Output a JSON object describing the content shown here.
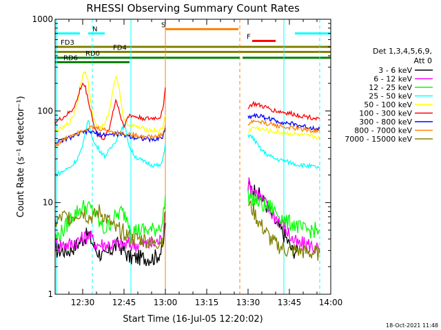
{
  "chart_data": {
    "type": "line",
    "title": "RHESSI Observing Summary Count Rates",
    "xlabel": "Start Time (16-Jul-05 12:20:02)",
    "ylabel": "Count Rate (s⁻¹ detector⁻¹)",
    "ylog": true,
    "ylim": [
      1,
      1000
    ],
    "xlim_minutes": [
      0,
      100
    ],
    "x_ticks": [
      {
        "label": "12:30",
        "minute": 10
      },
      {
        "label": "12:45",
        "minute": 25
      },
      {
        "label": "13:00",
        "minute": 40
      },
      {
        "label": "13:15",
        "minute": 55
      },
      {
        "label": "13:30",
        "minute": 70
      },
      {
        "label": "13:45",
        "minute": 85
      },
      {
        "label": "14:00",
        "minute": 100
      }
    ],
    "y_ticks": [
      {
        "label": "1",
        "value": 1
      },
      {
        "label": "10",
        "value": 10
      },
      {
        "label": "100",
        "value": 100
      },
      {
        "label": "1000",
        "value": 1000
      }
    ],
    "legend_title": "Det 1,3,4,5,6,9,",
    "legend_title2": "Att 0",
    "legend_position": "right",
    "flag_bars": [
      {
        "label": "N",
        "color": "#00ffff",
        "y": 700,
        "segments": [
          [
            0,
            9
          ],
          [
            12,
            18
          ],
          [
            87,
            100
          ]
        ],
        "label_minute": 13.5
      },
      {
        "label": "S",
        "color": "#ff8000",
        "y": 780,
        "segments": [
          [
            40,
            66.5
          ]
        ],
        "label_minute": 38.5
      },
      {
        "label": "F",
        "color": "#ff0000",
        "y": 580,
        "segments": [
          [
            71.5,
            80
          ]
        ],
        "label_minute": 69.5
      },
      {
        "label": "FD3",
        "color": "#808000",
        "y": 500,
        "segments": [
          [
            0,
            100
          ]
        ],
        "label_minute": 2
      },
      {
        "label": "FD4",
        "color": "#808000",
        "y": 440,
        "segments": [
          [
            0,
            100
          ]
        ],
        "label_minute": 21
      },
      {
        "label": "RD0",
        "color": "#008000",
        "y": 380,
        "segments": [
          [
            0,
            67
          ],
          [
            68,
            100
          ]
        ],
        "label_minute": 11
      },
      {
        "label": "RD6",
        "color": "#008000",
        "y": 340,
        "segments": [
          [
            0,
            27
          ]
        ],
        "label_minute": 3
      }
    ],
    "vlines": [
      {
        "minute": 0.5,
        "color": "#00ffff",
        "style": "solid"
      },
      {
        "minute": 13.5,
        "color": "#00ffff",
        "style": "dashed"
      },
      {
        "minute": 27.5,
        "color": "#00ffff",
        "style": "solid"
      },
      {
        "minute": 40,
        "color": "#ff8000",
        "style": "solid"
      },
      {
        "minute": 67,
        "color": "#ff8000",
        "style": "dashed"
      },
      {
        "minute": 83,
        "color": "#00ffff",
        "style": "solid"
      },
      {
        "minute": 96,
        "color": "#00ffff",
        "style": "dashed"
      }
    ],
    "series": [
      {
        "name": "3 - 6 keV",
        "color": "#000000",
        "points": [
          [
            0,
            3
          ],
          [
            5,
            3
          ],
          [
            8,
            3.5
          ],
          [
            10,
            4
          ],
          [
            12,
            4.5
          ],
          [
            15,
            3
          ],
          [
            18,
            2.5
          ],
          [
            20,
            3
          ],
          [
            23,
            3.5
          ],
          [
            25,
            3
          ],
          [
            27,
            2.5
          ],
          [
            30,
            2.5
          ],
          [
            33,
            2.5
          ],
          [
            36,
            2.5
          ],
          [
            39,
            3
          ],
          [
            40,
            6
          ]
        ],
        "points2": [
          [
            70,
            15
          ],
          [
            72,
            14
          ],
          [
            74,
            12
          ],
          [
            76,
            10
          ],
          [
            78,
            8
          ],
          [
            80,
            6
          ],
          [
            82,
            5
          ],
          [
            84,
            4
          ],
          [
            86,
            3
          ],
          [
            88,
            3
          ]
        ]
      },
      {
        "name": "6 - 12 keV",
        "color": "#ff00ff",
        "points": [
          [
            0,
            3.5
          ],
          [
            5,
            3.5
          ],
          [
            10,
            4
          ],
          [
            12,
            4.5
          ],
          [
            15,
            3.5
          ],
          [
            20,
            3.5
          ],
          [
            25,
            3.5
          ],
          [
            30,
            3.5
          ],
          [
            35,
            3.5
          ],
          [
            39,
            4
          ],
          [
            40,
            8
          ]
        ],
        "points2": [
          [
            70,
            16
          ],
          [
            72,
            14
          ],
          [
            74,
            12
          ],
          [
            76,
            10
          ],
          [
            78,
            8
          ],
          [
            80,
            7
          ],
          [
            82,
            6
          ],
          [
            84,
            5
          ],
          [
            86,
            4
          ],
          [
            88,
            3.5
          ],
          [
            92,
            3.5
          ],
          [
            96,
            3
          ]
        ]
      },
      {
        "name": "12 - 25 keV",
        "color": "#00ff00",
        "points": [
          [
            0,
            4
          ],
          [
            3,
            5
          ],
          [
            6,
            7
          ],
          [
            8,
            8
          ],
          [
            10,
            9
          ],
          [
            12,
            9
          ],
          [
            14,
            8
          ],
          [
            16,
            6
          ],
          [
            18,
            5
          ],
          [
            20,
            6
          ],
          [
            22,
            7
          ],
          [
            24,
            8
          ],
          [
            26,
            7
          ],
          [
            28,
            5
          ],
          [
            32,
            5
          ],
          [
            36,
            5
          ],
          [
            39,
            6
          ],
          [
            40,
            12
          ]
        ],
        "points2": [
          [
            70,
            12
          ],
          [
            72,
            11
          ],
          [
            74,
            10
          ],
          [
            76,
            9
          ],
          [
            78,
            9
          ],
          [
            80,
            8
          ],
          [
            82,
            7
          ],
          [
            84,
            6
          ],
          [
            86,
            6
          ],
          [
            90,
            5
          ],
          [
            94,
            5
          ],
          [
            96,
            5
          ]
        ]
      },
      {
        "name": "25 - 50 keV",
        "color": "#00ffff",
        "points": [
          [
            0,
            20
          ],
          [
            3,
            22
          ],
          [
            6,
            25
          ],
          [
            8,
            30
          ],
          [
            10,
            40
          ],
          [
            11,
            60
          ],
          [
            12,
            80
          ],
          [
            13,
            60
          ],
          [
            14,
            45
          ],
          [
            16,
            38
          ],
          [
            18,
            32
          ],
          [
            20,
            38
          ],
          [
            22,
            48
          ],
          [
            24,
            60
          ],
          [
            25,
            70
          ],
          [
            26,
            55
          ],
          [
            27,
            40
          ],
          [
            29,
            32
          ],
          [
            32,
            28
          ],
          [
            35,
            26
          ],
          [
            38,
            25
          ],
          [
            39,
            28
          ],
          [
            40,
            45
          ]
        ],
        "points2": [
          [
            70,
            55
          ],
          [
            72,
            50
          ],
          [
            74,
            40
          ],
          [
            76,
            35
          ],
          [
            78,
            32
          ],
          [
            80,
            30
          ],
          [
            84,
            28
          ],
          [
            88,
            26
          ],
          [
            92,
            25
          ],
          [
            96,
            24
          ]
        ]
      },
      {
        "name": "50 - 100 keV",
        "color": "#ffff00",
        "points": [
          [
            0,
            60
          ],
          [
            3,
            65
          ],
          [
            6,
            80
          ],
          [
            8,
            120
          ],
          [
            9,
            180
          ],
          [
            10,
            250
          ],
          [
            11,
            280
          ],
          [
            12,
            200
          ],
          [
            13,
            120
          ],
          [
            14,
            80
          ],
          [
            16,
            65
          ],
          [
            18,
            70
          ],
          [
            20,
            110
          ],
          [
            21,
            180
          ],
          [
            22,
            240
          ],
          [
            23,
            200
          ],
          [
            24,
            120
          ],
          [
            25,
            80
          ],
          [
            27,
            70
          ],
          [
            30,
            66
          ],
          [
            34,
            62
          ],
          [
            38,
            60
          ],
          [
            39,
            65
          ],
          [
            40,
            90
          ]
        ],
        "points2": [
          [
            70,
            60
          ],
          [
            72,
            66
          ],
          [
            74,
            64
          ],
          [
            76,
            62
          ],
          [
            78,
            60
          ],
          [
            82,
            58
          ],
          [
            86,
            56
          ],
          [
            90,
            54
          ],
          [
            94,
            52
          ],
          [
            96,
            52
          ]
        ]
      },
      {
        "name": "100 - 300 keV",
        "color": "#ff0000",
        "points": [
          [
            0,
            75
          ],
          [
            3,
            85
          ],
          [
            6,
            100
          ],
          [
            8,
            130
          ],
          [
            9,
            170
          ],
          [
            10,
            200
          ],
          [
            11,
            180
          ],
          [
            12,
            130
          ],
          [
            13,
            100
          ],
          [
            14,
            70
          ],
          [
            16,
            52
          ],
          [
            18,
            50
          ],
          [
            20,
            70
          ],
          [
            21,
            100
          ],
          [
            22,
            130
          ],
          [
            23,
            110
          ],
          [
            24,
            80
          ],
          [
            25,
            70
          ],
          [
            27,
            90
          ],
          [
            30,
            85
          ],
          [
            34,
            82
          ],
          [
            38,
            85
          ],
          [
            39,
            100
          ],
          [
            40,
            180
          ]
        ],
        "points2": [
          [
            70,
            110
          ],
          [
            72,
            120
          ],
          [
            74,
            115
          ],
          [
            76,
            110
          ],
          [
            78,
            105
          ],
          [
            80,
            100
          ],
          [
            84,
            95
          ],
          [
            88,
            90
          ],
          [
            92,
            86
          ],
          [
            96,
            82
          ]
        ]
      },
      {
        "name": "300 - 800 keV",
        "color": "#0000ff",
        "points": [
          [
            0,
            45
          ],
          [
            3,
            48
          ],
          [
            6,
            52
          ],
          [
            8,
            55
          ],
          [
            10,
            58
          ],
          [
            12,
            60
          ],
          [
            14,
            58
          ],
          [
            16,
            55
          ],
          [
            18,
            55
          ],
          [
            20,
            55
          ],
          [
            22,
            56
          ],
          [
            24,
            55
          ],
          [
            26,
            54
          ],
          [
            28,
            52
          ],
          [
            32,
            50
          ],
          [
            36,
            48
          ],
          [
            39,
            52
          ],
          [
            40,
            65
          ]
        ],
        "points2": [
          [
            70,
            85
          ],
          [
            72,
            90
          ],
          [
            74,
            88
          ],
          [
            76,
            85
          ],
          [
            78,
            82
          ],
          [
            80,
            78
          ],
          [
            84,
            74
          ],
          [
            88,
            70
          ],
          [
            92,
            66
          ],
          [
            96,
            64
          ]
        ]
      },
      {
        "name": "800 - 7000 keV",
        "color": "#ff8000",
        "points": [
          [
            0,
            42
          ],
          [
            3,
            48
          ],
          [
            6,
            55
          ],
          [
            8,
            58
          ],
          [
            10,
            62
          ],
          [
            12,
            64
          ],
          [
            14,
            66
          ],
          [
            16,
            64
          ],
          [
            18,
            62
          ],
          [
            20,
            60
          ],
          [
            22,
            58
          ],
          [
            24,
            57
          ],
          [
            26,
            56
          ],
          [
            28,
            55
          ],
          [
            32,
            53
          ],
          [
            36,
            52
          ],
          [
            39,
            55
          ],
          [
            40,
            70
          ]
        ],
        "points2": [
          [
            70,
            70
          ],
          [
            72,
            78
          ],
          [
            74,
            76
          ],
          [
            76,
            74
          ],
          [
            78,
            72
          ],
          [
            80,
            70
          ],
          [
            84,
            66
          ],
          [
            88,
            64
          ],
          [
            92,
            62
          ],
          [
            96,
            60
          ]
        ]
      },
      {
        "name": "7000 - 15000 keV",
        "color": "#808000",
        "points": [
          [
            0,
            6
          ],
          [
            3,
            7
          ],
          [
            6,
            7
          ],
          [
            8,
            7.5
          ],
          [
            10,
            8
          ],
          [
            12,
            7
          ],
          [
            14,
            7
          ],
          [
            16,
            8
          ],
          [
            18,
            7
          ],
          [
            20,
            6
          ],
          [
            22,
            5
          ],
          [
            24,
            5
          ],
          [
            26,
            4.5
          ],
          [
            28,
            4
          ],
          [
            32,
            4
          ],
          [
            36,
            3.5
          ],
          [
            39,
            4
          ],
          [
            40,
            8
          ]
        ],
        "points2": [
          [
            70,
            10
          ],
          [
            72,
            8
          ],
          [
            74,
            6
          ],
          [
            76,
            5
          ],
          [
            78,
            4
          ],
          [
            80,
            3.5
          ],
          [
            84,
            3
          ],
          [
            88,
            3
          ],
          [
            92,
            2.8
          ],
          [
            96,
            2.8
          ]
        ]
      }
    ]
  },
  "footer": {
    "timestamp": "18-Oct-2021 11:48"
  }
}
